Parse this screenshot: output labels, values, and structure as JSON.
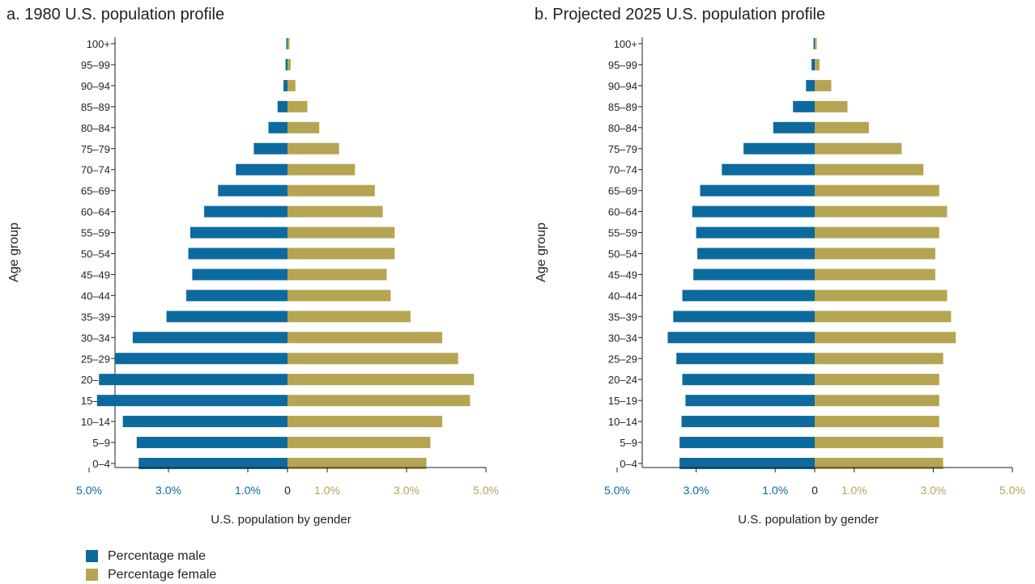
{
  "colors": {
    "male": "#0d6a9e",
    "female": "#b5a552",
    "axis": "#231f20",
    "text": "#231f20"
  },
  "legend": {
    "male_label": "Percentage male",
    "female_label": "Percentage female"
  },
  "chart_data": [
    {
      "type": "bar",
      "orientation": "horizontal-population-pyramid",
      "title": "a. 1980 U.S. population profile",
      "xlabel": "U.S. population by gender",
      "ylabel": "Age group",
      "xlim": [
        -5.0,
        5.0
      ],
      "x_ticks_male": [
        "5.0%",
        "3.0%",
        "1.0%"
      ],
      "x_tick_zero": "0",
      "x_ticks_female": [
        "1.0%",
        "3.0%",
        "5.0%"
      ],
      "categories": [
        "100+",
        "95–99",
        "90–94",
        "85–89",
        "80–84",
        "75–79",
        "70–74",
        "65–69",
        "60–64",
        "55–59",
        "50–54",
        "45–49",
        "40–44",
        "35–39",
        "30–34",
        "25–29",
        "20–24",
        "15–19",
        "10–14",
        "5–9",
        "0–4"
      ],
      "series": [
        {
          "name": "Percentage male",
          "values": [
            0.03,
            0.05,
            0.1,
            0.25,
            0.48,
            0.85,
            1.3,
            1.75,
            2.1,
            2.45,
            2.5,
            2.4,
            2.55,
            3.05,
            3.9,
            4.35,
            4.75,
            4.8,
            4.15,
            3.8,
            3.75
          ]
        },
        {
          "name": "Percentage female",
          "values": [
            0.05,
            0.08,
            0.2,
            0.5,
            0.8,
            1.3,
            1.7,
            2.2,
            2.4,
            2.7,
            2.7,
            2.5,
            2.6,
            3.1,
            3.9,
            4.3,
            4.7,
            4.6,
            3.9,
            3.6,
            3.5
          ]
        }
      ]
    },
    {
      "type": "bar",
      "orientation": "horizontal-population-pyramid",
      "title": "b. Projected 2025 U.S. population profile",
      "xlabel": "U.S. population by gender",
      "ylabel": "Age group",
      "xlim": [
        -5.0,
        5.0
      ],
      "x_ticks_male": [
        "5.0%",
        "3.0%",
        "1.0%"
      ],
      "x_tick_zero": "0",
      "x_ticks_female": [
        "1.0%",
        "3.0%",
        "5.0%"
      ],
      "categories": [
        "100+",
        "95–99",
        "90–94",
        "85–89",
        "80–84",
        "75–79",
        "70–74",
        "65–69",
        "60–64",
        "55–59",
        "50–54",
        "45–49",
        "40–44",
        "35–39",
        "30–34",
        "25–29",
        "20–24",
        "15–19",
        "10–14",
        "5–9",
        "0–4"
      ],
      "series": [
        {
          "name": "Percentage male",
          "values": [
            0.03,
            0.08,
            0.22,
            0.55,
            1.05,
            1.8,
            2.35,
            2.9,
            3.1,
            3.0,
            2.97,
            3.07,
            3.35,
            3.58,
            3.72,
            3.5,
            3.35,
            3.27,
            3.37,
            3.42,
            3.42
          ]
        },
        {
          "name": "Percentage female",
          "values": [
            0.05,
            0.12,
            0.42,
            0.83,
            1.37,
            2.2,
            2.75,
            3.15,
            3.35,
            3.15,
            3.05,
            3.05,
            3.35,
            3.45,
            3.57,
            3.25,
            3.15,
            3.15,
            3.15,
            3.25,
            3.25
          ]
        }
      ]
    }
  ]
}
